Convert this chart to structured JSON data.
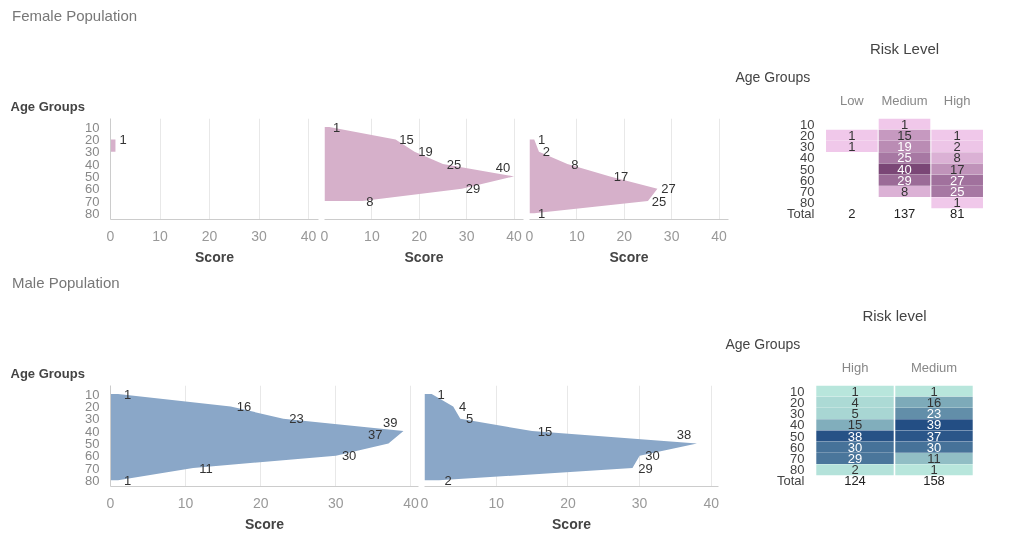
{
  "chart_data": [
    {
      "type": "area",
      "orientation": "horizontal",
      "title": "Female Population",
      "ylabel": "Age Groups",
      "xlabel": "Score",
      "categories": [
        "10",
        "20",
        "30",
        "40",
        "50",
        "60",
        "70",
        "80"
      ],
      "values": [
        null,
        1,
        1,
        null,
        null,
        null,
        null,
        null
      ],
      "value_labels": [
        null,
        "1",
        null,
        null,
        null,
        null,
        null,
        null
      ],
      "color": "#d6b0ca",
      "xlim": [
        0,
        42
      ],
      "xticks": [
        0,
        10,
        20,
        30,
        40
      ],
      "grid": "x"
    },
    {
      "type": "area",
      "orientation": "horizontal",
      "xlabel": "Score",
      "categories": [
        "10",
        "20",
        "30",
        "40",
        "50",
        "60",
        "70",
        "80"
      ],
      "values": [
        1,
        15,
        19,
        25,
        40,
        29,
        8,
        null
      ],
      "value_labels": [
        "1",
        "15",
        "19",
        "25",
        "40",
        "29",
        "8",
        null
      ],
      "color": "#d6b0ca",
      "xlim": [
        0,
        42
      ],
      "xticks": [
        0,
        10,
        20,
        30,
        40
      ],
      "grid": "x",
      "tick_labels": "x"
    },
    {
      "type": "area",
      "orientation": "horizontal",
      "xlabel": "Score",
      "categories": [
        "10",
        "20",
        "30",
        "40",
        "50",
        "60",
        "70",
        "80"
      ],
      "values": [
        null,
        1,
        2,
        8,
        17,
        27,
        25,
        1
      ],
      "value_labels": [
        null,
        "1",
        "2",
        "8",
        "17",
        "27",
        "25",
        "1"
      ],
      "color": "#d6b0ca",
      "xlim": [
        0,
        42
      ],
      "xticks": [
        0,
        10,
        20,
        30,
        40
      ],
      "grid": "x",
      "tick_labels": "x"
    },
    {
      "type": "heatmap",
      "title": "Risk Level",
      "ylabel": "Age Groups",
      "categories": [
        "Low",
        "Medium",
        "High"
      ],
      "y_categories": [
        "10",
        "20",
        "30",
        "40",
        "50",
        "60",
        "70",
        "80"
      ],
      "cells": [
        [
          null,
          1,
          null
        ],
        [
          1,
          15,
          1
        ],
        [
          1,
          19,
          2
        ],
        [
          null,
          25,
          8
        ],
        [
          null,
          40,
          17
        ],
        [
          null,
          29,
          27
        ],
        [
          null,
          8,
          25
        ],
        [
          null,
          null,
          1
        ]
      ],
      "colors": [
        "#f0c8ea",
        "#7a4676"
      ],
      "data_labels": true,
      "totals": [
        "2",
        "137",
        "81"
      ],
      "annotations": [
        "Total"
      ]
    },
    {
      "type": "area",
      "orientation": "horizontal",
      "title": "Male Population",
      "ylabel": "Age Groups",
      "xlabel": "Score",
      "categories": [
        "10",
        "20",
        "30",
        "40",
        "50",
        "60",
        "70",
        "80"
      ],
      "values": [
        1,
        16,
        23,
        39,
        37,
        30,
        11,
        1
      ],
      "value_labels": [
        "1",
        "16",
        "23",
        "39",
        "37",
        "30",
        "11",
        "1"
      ],
      "color": "#8aa7c8",
      "xlim": [
        0,
        41
      ],
      "xticks": [
        0,
        10,
        20,
        30,
        40
      ],
      "grid": "x"
    },
    {
      "type": "area",
      "orientation": "horizontal",
      "xlabel": "Score",
      "categories": [
        "10",
        "20",
        "30",
        "40",
        "50",
        "60",
        "70",
        "80"
      ],
      "values": [
        1,
        4,
        5,
        15,
        38,
        30,
        29,
        2
      ],
      "value_labels": [
        "1",
        "4",
        "5",
        "15",
        "38",
        "30",
        "29",
        "2"
      ],
      "color": "#8aa7c8",
      "xlim": [
        0,
        41
      ],
      "xticks": [
        0,
        10,
        20,
        30,
        40
      ],
      "grid": "x",
      "tick_labels": "x"
    },
    {
      "type": "heatmap",
      "title": "Risk level",
      "ylabel": "Age Groups",
      "categories": [
        "High",
        "Medium"
      ],
      "y_categories": [
        "10",
        "20",
        "30",
        "40",
        "50",
        "60",
        "70",
        "80"
      ],
      "cells": [
        [
          1,
          1
        ],
        [
          4,
          16
        ],
        [
          5,
          23
        ],
        [
          15,
          39
        ],
        [
          38,
          37
        ],
        [
          30,
          30
        ],
        [
          29,
          11
        ],
        [
          2,
          1
        ]
      ],
      "colors": [
        "#b8e6dc",
        "#234e84"
      ],
      "data_labels": true,
      "totals": [
        "124",
        "158"
      ],
      "annotations": [
        "Total"
      ]
    }
  ]
}
